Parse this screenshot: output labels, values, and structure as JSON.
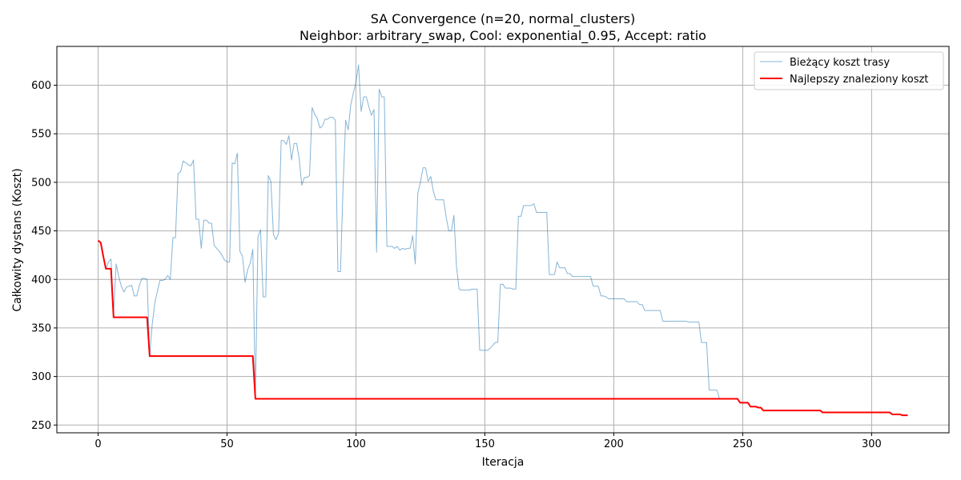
{
  "chart_data": {
    "type": "line",
    "title": "SA Convergence (n=20, normal_clusters)",
    "subtitle": "Neighbor: arbitrary_swap, Cool: exponential_0.95, Accept: ratio",
    "xlabel": "Iteracja",
    "ylabel": "Całkowity dystans (Koszt)",
    "xlim": [
      -16,
      330
    ],
    "ylim": [
      242,
      640
    ],
    "xticks": [
      0,
      50,
      100,
      150,
      200,
      250,
      300
    ],
    "yticks": [
      250,
      300,
      350,
      400,
      450,
      500,
      550,
      600
    ],
    "grid": true,
    "legend_position": "top-right",
    "series": [
      {
        "name": "Bieżący koszt trasy",
        "color": "#1f77b4",
        "points": [
          [
            0,
            440
          ],
          [
            1,
            438
          ],
          [
            2,
            424
          ],
          [
            3,
            411
          ],
          [
            4,
            418
          ],
          [
            5,
            421
          ],
          [
            6,
            365
          ],
          [
            7,
            416
          ],
          [
            8,
            403
          ],
          [
            9,
            393
          ],
          [
            10,
            387
          ],
          [
            11,
            392
          ],
          [
            12,
            393
          ],
          [
            13,
            394
          ],
          [
            14,
            383
          ],
          [
            15,
            383
          ],
          [
            16,
            394
          ],
          [
            17,
            401
          ],
          [
            18,
            401
          ],
          [
            19,
            400
          ],
          [
            20,
            321
          ],
          [
            21,
            354
          ],
          [
            22,
            376
          ],
          [
            23,
            388
          ],
          [
            24,
            399
          ],
          [
            25,
            399
          ],
          [
            26,
            400
          ],
          [
            27,
            404
          ],
          [
            28,
            400
          ],
          [
            29,
            443
          ],
          [
            30,
            443
          ],
          [
            31,
            509
          ],
          [
            32,
            511
          ],
          [
            33,
            522
          ],
          [
            34,
            520
          ],
          [
            35,
            518
          ],
          [
            36,
            517
          ],
          [
            37,
            523
          ],
          [
            38,
            462
          ],
          [
            39,
            462
          ],
          [
            40,
            432
          ],
          [
            41,
            461
          ],
          [
            42,
            461
          ],
          [
            43,
            458
          ],
          [
            44,
            458
          ],
          [
            45,
            435
          ],
          [
            46,
            432
          ],
          [
            47,
            429
          ],
          [
            48,
            425
          ],
          [
            49,
            420
          ],
          [
            50,
            418
          ],
          [
            51,
            418
          ],
          [
            52,
            520
          ],
          [
            53,
            519
          ],
          [
            54,
            530
          ],
          [
            55,
            429
          ],
          [
            56,
            424
          ],
          [
            57,
            397
          ],
          [
            58,
            410
          ],
          [
            59,
            417
          ],
          [
            60,
            431
          ],
          [
            61,
            277
          ],
          [
            62,
            444
          ],
          [
            63,
            451
          ],
          [
            64,
            382
          ],
          [
            65,
            382
          ],
          [
            66,
            507
          ],
          [
            67,
            501
          ],
          [
            68,
            446
          ],
          [
            69,
            441
          ],
          [
            70,
            448
          ],
          [
            71,
            543
          ],
          [
            72,
            543
          ],
          [
            73,
            539
          ],
          [
            74,
            548
          ],
          [
            75,
            523
          ],
          [
            76,
            540
          ],
          [
            77,
            540
          ],
          [
            78,
            524
          ],
          [
            79,
            497
          ],
          [
            80,
            505
          ],
          [
            81,
            505
          ],
          [
            82,
            507
          ],
          [
            83,
            577
          ],
          [
            84,
            570
          ],
          [
            85,
            566
          ],
          [
            86,
            556
          ],
          [
            87,
            558
          ],
          [
            88,
            565
          ],
          [
            89,
            565
          ],
          [
            90,
            567
          ],
          [
            91,
            567
          ],
          [
            92,
            564
          ],
          [
            93,
            408
          ],
          [
            94,
            408
          ],
          [
            95,
            495
          ],
          [
            96,
            564
          ],
          [
            97,
            554
          ],
          [
            98,
            580
          ],
          [
            99,
            592
          ],
          [
            100,
            603
          ],
          [
            101,
            621
          ],
          [
            102,
            573
          ],
          [
            103,
            588
          ],
          [
            104,
            588
          ],
          [
            105,
            578
          ],
          [
            106,
            569
          ],
          [
            107,
            575
          ],
          [
            108,
            428
          ],
          [
            109,
            596
          ],
          [
            110,
            588
          ],
          [
            111,
            588
          ],
          [
            112,
            434
          ],
          [
            113,
            434
          ],
          [
            114,
            434
          ],
          [
            115,
            432
          ],
          [
            116,
            434
          ],
          [
            117,
            430
          ],
          [
            118,
            432
          ],
          [
            119,
            431
          ],
          [
            120,
            432
          ],
          [
            121,
            432
          ],
          [
            122,
            445
          ],
          [
            123,
            416
          ],
          [
            124,
            489
          ],
          [
            125,
            500
          ],
          [
            126,
            515
          ],
          [
            127,
            515
          ],
          [
            128,
            501
          ],
          [
            129,
            506
          ],
          [
            130,
            491
          ],
          [
            131,
            482
          ],
          [
            132,
            482
          ],
          [
            133,
            482
          ],
          [
            134,
            482
          ],
          [
            135,
            464
          ],
          [
            136,
            450
          ],
          [
            137,
            450
          ],
          [
            138,
            466
          ],
          [
            139,
            413
          ],
          [
            140,
            390
          ],
          [
            141,
            389
          ],
          [
            142,
            389
          ],
          [
            143,
            389
          ],
          [
            144,
            389
          ],
          [
            145,
            390
          ],
          [
            146,
            390
          ],
          [
            147,
            390
          ],
          [
            148,
            327
          ],
          [
            149,
            327
          ],
          [
            150,
            327
          ],
          [
            151,
            327
          ],
          [
            152,
            329
          ],
          [
            153,
            332
          ],
          [
            154,
            335
          ],
          [
            155,
            335
          ],
          [
            156,
            395
          ],
          [
            157,
            395
          ],
          [
            158,
            391
          ],
          [
            159,
            391
          ],
          [
            160,
            391
          ],
          [
            161,
            390
          ],
          [
            162,
            390
          ],
          [
            163,
            465
          ],
          [
            164,
            465
          ],
          [
            165,
            476
          ],
          [
            166,
            476
          ],
          [
            167,
            476
          ],
          [
            168,
            476
          ],
          [
            169,
            478
          ],
          [
            170,
            469
          ],
          [
            171,
            469
          ],
          [
            172,
            469
          ],
          [
            173,
            469
          ],
          [
            174,
            469
          ],
          [
            175,
            405
          ],
          [
            176,
            405
          ],
          [
            177,
            405
          ],
          [
            178,
            418
          ],
          [
            179,
            412
          ],
          [
            180,
            412
          ],
          [
            181,
            412
          ],
          [
            182,
            406
          ],
          [
            183,
            406
          ],
          [
            184,
            403
          ],
          [
            185,
            403
          ],
          [
            186,
            403
          ],
          [
            187,
            403
          ],
          [
            188,
            403
          ],
          [
            189,
            403
          ],
          [
            190,
            403
          ],
          [
            191,
            403
          ],
          [
            192,
            393
          ],
          [
            193,
            393
          ],
          [
            194,
            393
          ],
          [
            195,
            383
          ],
          [
            196,
            383
          ],
          [
            197,
            382
          ],
          [
            198,
            380
          ],
          [
            199,
            380
          ],
          [
            200,
            380
          ],
          [
            201,
            380
          ],
          [
            202,
            380
          ],
          [
            203,
            380
          ],
          [
            204,
            380
          ],
          [
            205,
            377
          ],
          [
            206,
            377
          ],
          [
            207,
            377
          ],
          [
            208,
            377
          ],
          [
            209,
            377
          ],
          [
            210,
            374
          ],
          [
            211,
            374
          ],
          [
            212,
            368
          ],
          [
            213,
            368
          ],
          [
            214,
            368
          ],
          [
            215,
            368
          ],
          [
            216,
            368
          ],
          [
            217,
            368
          ],
          [
            218,
            368
          ],
          [
            219,
            357
          ],
          [
            220,
            357
          ],
          [
            221,
            357
          ],
          [
            222,
            357
          ],
          [
            223,
            357
          ],
          [
            224,
            357
          ],
          [
            225,
            357
          ],
          [
            226,
            357
          ],
          [
            227,
            357
          ],
          [
            228,
            357
          ],
          [
            229,
            356
          ],
          [
            230,
            356
          ],
          [
            231,
            356
          ],
          [
            232,
            356
          ],
          [
            233,
            356
          ],
          [
            234,
            335
          ],
          [
            235,
            335
          ],
          [
            236,
            335
          ],
          [
            237,
            286
          ],
          [
            238,
            286
          ],
          [
            239,
            286
          ],
          [
            240,
            286
          ],
          [
            241,
            277
          ],
          [
            242,
            277
          ],
          [
            243,
            277
          ]
        ]
      },
      {
        "name": "Najlepszy znaleziony koszt",
        "color": "#ff0000",
        "points": [
          [
            0,
            440
          ],
          [
            1,
            438
          ],
          [
            2,
            424
          ],
          [
            3,
            411
          ],
          [
            5,
            411
          ],
          [
            6,
            361
          ],
          [
            19,
            361
          ],
          [
            20,
            321
          ],
          [
            60,
            321
          ],
          [
            61,
            277
          ],
          [
            248,
            277
          ],
          [
            249,
            273
          ],
          [
            252,
            273
          ],
          [
            253,
            269
          ],
          [
            255,
            269
          ],
          [
            256,
            268
          ],
          [
            257,
            268
          ],
          [
            258,
            265
          ],
          [
            280,
            265
          ],
          [
            281,
            263
          ],
          [
            307,
            263
          ],
          [
            308,
            261
          ],
          [
            311,
            261
          ],
          [
            312,
            260
          ],
          [
            314,
            260
          ]
        ]
      }
    ]
  }
}
